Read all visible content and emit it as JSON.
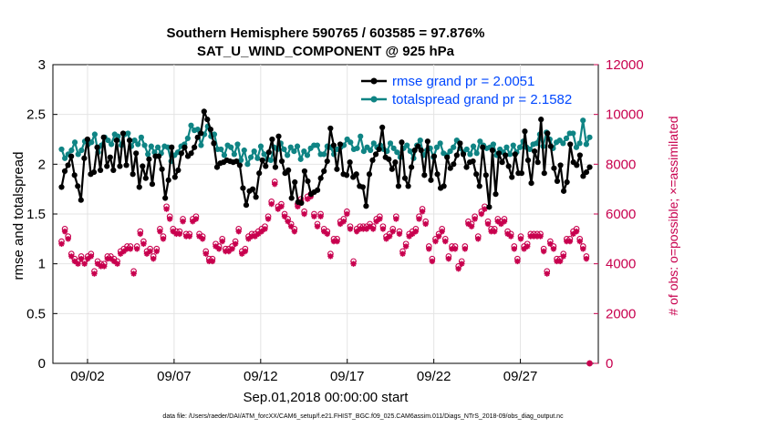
{
  "chart_data": {
    "type": "line",
    "title": "Southern Hemisphere 590765 / 603585 = 97.876%",
    "subtitle": "SAT_U_WIND_COMPONENT @ 925 hPa",
    "xlabel": "Sep.01,2018 00:00:00 start",
    "ylabel": "rmse and totalspread",
    "ylabel_right": "# of obs: o=possible; ×=assimilated",
    "ylim": [
      0,
      3
    ],
    "ylim_right": [
      0,
      12000
    ],
    "xlim": [
      0,
      31.5
    ],
    "yticks": [
      "0",
      "0.5",
      "1",
      "1.5",
      "2",
      "2.5",
      "3"
    ],
    "yticks_right": [
      "0",
      "2000",
      "4000",
      "6000",
      "8000",
      "10000",
      "12000"
    ],
    "xticks": [
      {
        "x": 2,
        "label": "09/02"
      },
      {
        "x": 7,
        "label": "09/07"
      },
      {
        "x": 12,
        "label": "09/12"
      },
      {
        "x": 17,
        "label": "09/17"
      },
      {
        "x": 22,
        "label": "09/22"
      },
      {
        "x": 27,
        "label": "09/27"
      }
    ],
    "legend_location": "top-right",
    "footnote": "data file: /Users/raeder/DAI/ATM_forcXX/CAM6_setup/f.e21.FHIST_BGC.f09_025.CAM6assim.011/Diags_NTrS_2018-09/obs_diag_output.nc",
    "colors": {
      "rmse": "#000000",
      "totalspread": "#0f8484",
      "obs": "#c8004e",
      "legend_text": "#0047ff"
    },
    "series": [
      {
        "name": "rmse grand pr = 2.0051",
        "values": [
          1.77,
          1.93,
          1.99,
          2.08,
          1.89,
          1.78,
          1.64,
          2.06,
          2.25,
          1.9,
          1.92,
          2.17,
          1.94,
          2.27,
          1.98,
          2.07,
          1.94,
          2.24,
          1.98,
          2.31,
          1.99,
          2.24,
          1.9,
          2.11,
          1.77,
          1.98,
          1.86,
          2.05,
          1.8,
          2.08,
          2.08,
          1.95,
          1.66,
          1.84,
          2.17,
          1.87,
          1.94,
          2.11,
          2.17,
          2.08,
          2.11,
          2.17,
          2.27,
          2.31,
          2.53,
          2.45,
          2.35,
          2.21,
          1.97,
          2.01,
          2.02,
          2.04,
          2.03,
          2.02,
          2.03,
          1.99,
          1.76,
          1.59,
          1.73,
          1.75,
          1.67,
          1.91,
          2.04,
          1.98,
          2.12,
          2.25,
          1.97,
          2.28,
          2.03,
          1.91,
          1.94,
          1.66,
          1.82,
          1.62,
          1.61,
          1.93,
          1.83,
          1.7,
          1.72,
          1.74,
          1.86,
          1.93,
          2.03,
          2.36,
          2.19,
          1.95,
          2.2,
          1.9,
          1.89,
          2.02,
          1.87,
          1.9,
          1.78,
          1.77,
          1.58,
          1.9,
          2.04,
          2.1,
          2.15,
          2.37,
          2.07,
          2.05,
          1.95,
          2.02,
          1.78,
          2.22,
          1.86,
          1.78,
          1.97,
          2.14,
          2.18,
          2.14,
          1.89,
          2.23,
          1.84,
          2.08,
          1.9,
          1.76,
          1.78,
          2.07,
          1.96,
          2.0,
          2.09,
          2.21,
          2.1,
          1.97,
          2.02,
          2.03,
          1.9,
          1.78,
          2.17,
          1.89,
          1.57,
          2.14,
          1.7,
          2.11,
          2.02,
          2.09,
          1.98,
          1.87,
          2.1,
          1.91,
          1.91,
          2.33,
          2.04,
          1.81,
          2.13,
          2.02,
          2.45,
          1.91,
          2.31,
          2.18,
          1.96,
          1.83,
          1.99,
          1.73,
          1.82,
          2.2,
          2.02,
          1.99,
          2.09,
          1.88,
          1.92,
          1.97
        ]
      },
      {
        "name": "totalspread grand pr = 2.1582",
        "values": [
          2.15,
          2.06,
          2.1,
          2.14,
          2.22,
          2.1,
          2.14,
          2.23,
          2.2,
          2.22,
          2.3,
          2.12,
          2.19,
          2.27,
          2.24,
          2.2,
          2.3,
          2.28,
          2.19,
          2.3,
          2.31,
          2.18,
          2.24,
          2.2,
          2.27,
          2.19,
          2.1,
          2.18,
          2.12,
          2.17,
          2.11,
          2.18,
          2.17,
          2.03,
          2.09,
          2.12,
          2.18,
          2.2,
          2.26,
          2.39,
          2.34,
          2.35,
          2.19,
          2.3,
          2.38,
          2.28,
          2.3,
          2.15,
          2.15,
          2.09,
          2.19,
          2.17,
          2.1,
          2.2,
          2.04,
          2.14,
          2.0,
          2.07,
          2.13,
          2.06,
          2.18,
          2.1,
          2.05,
          2.04,
          2.17,
          2.15,
          2.21,
          2.15,
          2.09,
          2.17,
          2.13,
          2.18,
          2.05,
          2.13,
          2.09,
          2.16,
          2.19,
          2.19,
          2.1,
          2.1,
          2.18,
          2.17,
          2.1,
          2.15,
          2.17,
          2.19,
          2.25,
          2.22,
          2.15,
          2.16,
          2.28,
          2.13,
          2.17,
          2.14,
          2.21,
          2.17,
          2.19,
          2.15,
          2.13,
          2.21,
          2.16,
          2.12,
          2.07,
          2.16,
          2.19,
          2.13,
          2.06,
          2.19,
          2.24,
          2.09,
          2.14,
          2.16,
          2.07,
          2.17,
          2.21,
          2.11,
          2.09,
          2.13,
          2.17,
          2.24,
          2.16,
          2.12,
          2.15,
          2.1,
          2.18,
          2.11,
          2.23,
          2.19,
          2.16,
          2.17,
          2.2,
          2.09,
          2.15,
          2.12,
          2.17,
          2.1,
          2.19,
          2.12,
          2.17,
          2.23,
          2.17,
          2.15,
          2.2,
          2.21,
          2.3,
          2.18,
          2.32,
          2.25,
          2.16,
          2.22,
          2.24,
          2.21,
          2.26,
          2.31,
          2.31,
          2.17,
          2.21,
          2.44,
          2.2,
          2.27
        ]
      },
      {
        "name": "obs_possible",
        "values": [
          4900,
          5400,
          5100,
          4400,
          4200,
          4100,
          4300,
          4100,
          4300,
          4400,
          3700,
          4100,
          4000,
          4000,
          4300,
          4300,
          4200,
          4100,
          4500,
          4600,
          4700,
          4700,
          3700,
          4700,
          5300,
          4900,
          4500,
          4600,
          4300,
          4600,
          5400,
          5100,
          6300,
          5900,
          5400,
          5300,
          5300,
          5800,
          5200,
          5200,
          5800,
          5900,
          5200,
          5100,
          4500,
          4200,
          4200,
          4800,
          4700,
          5000,
          4600,
          4600,
          4700,
          4900,
          5400,
          4500,
          4600,
          5100,
          5200,
          5200,
          5300,
          5400,
          5500,
          5900,
          6500,
          7300,
          6300,
          6400,
          6000,
          5800,
          5600,
          5400,
          6400,
          6600,
          6100,
          6700,
          6800,
          6000,
          5600,
          6000,
          5400,
          5300,
          4400,
          5000,
          5000,
          5700,
          5800,
          6100,
          5500,
          4100,
          5400,
          5500,
          5500,
          5500,
          5600,
          5500,
          5800,
          5900,
          5500,
          5100,
          5200,
          5400,
          5900,
          5300,
          4500,
          4800,
          5200,
          5300,
          5400,
          5900,
          6200,
          5700,
          4700,
          4200,
          5000,
          5200,
          5400,
          5000,
          4300,
          4700,
          4700,
          3900,
          4100,
          4700,
          5700,
          5600,
          5900,
          5100,
          6100,
          6300,
          5700,
          5400,
          5400,
          5800,
          5700,
          5800,
          5300,
          5200,
          4700,
          4200,
          5100,
          4700,
          4800,
          5200,
          5200,
          5200,
          5200,
          4600,
          3700,
          4900,
          4700,
          4200,
          4200,
          4400,
          5000,
          5000,
          5300,
          5400,
          5000,
          4700,
          4300,
          0
        ]
      },
      {
        "name": "obs_assimilated",
        "values": [
          4800,
          5300,
          5000,
          4300,
          4100,
          4000,
          4200,
          4000,
          4200,
          4300,
          3600,
          4000,
          3900,
          3900,
          4200,
          4200,
          4100,
          4000,
          4400,
          4500,
          4600,
          4600,
          3600,
          4600,
          5200,
          4800,
          4400,
          4500,
          4200,
          4500,
          5300,
          5000,
          6200,
          5800,
          5300,
          5200,
          5200,
          5700,
          5100,
          5100,
          5700,
          5800,
          5100,
          5000,
          4400,
          4100,
          4100,
          4700,
          4600,
          4900,
          4500,
          4500,
          4600,
          4800,
          5300,
          4400,
          4500,
          5000,
          5100,
          5100,
          5200,
          5300,
          5400,
          5800,
          6400,
          7200,
          6200,
          6300,
          5900,
          5700,
          5500,
          5300,
          6300,
          6500,
          6000,
          6600,
          6700,
          5900,
          5500,
          5900,
          5300,
          5200,
          4300,
          4900,
          4900,
          5600,
          5700,
          6000,
          5400,
          4000,
          5300,
          5400,
          5400,
          5400,
          5500,
          5400,
          5700,
          5800,
          5400,
          5000,
          5100,
          5300,
          5800,
          5200,
          4400,
          4700,
          5100,
          5200,
          5300,
          5800,
          6100,
          5600,
          4600,
          4100,
          4900,
          5100,
          5300,
          4900,
          4200,
          4600,
          4600,
          3800,
          4000,
          4600,
          5600,
          5500,
          5800,
          5000,
          6000,
          6200,
          5600,
          5300,
          5300,
          5700,
          5600,
          5700,
          5200,
          5100,
          4600,
          4100,
          5000,
          4600,
          4700,
          5100,
          5100,
          5100,
          5100,
          4500,
          3600,
          4800,
          4600,
          4100,
          4100,
          4300,
          4900,
          4900,
          5200,
          5300,
          4900,
          4600,
          4200,
          0
        ]
      }
    ]
  }
}
